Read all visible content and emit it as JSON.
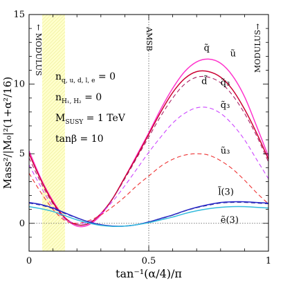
{
  "chart_data": {
    "type": "line",
    "xlabel": "tan⁻¹(α/4)/π",
    "ylabel": "Mass²/|M₀|²(1+α²/16)",
    "xlim": [
      0,
      1
    ],
    "ylim": [
      -2,
      15
    ],
    "x_ticks": [
      0,
      0.5,
      1
    ],
    "x_tick_labels": [
      "0",
      "0.5",
      "1"
    ],
    "y_ticks": [
      0,
      5,
      10,
      15
    ],
    "y_tick_labels": [
      "0",
      "5",
      "10",
      "15"
    ],
    "grid": false,
    "x": [
      0,
      0.05,
      0.1,
      0.15,
      0.2,
      0.25,
      0.3,
      0.35,
      0.4,
      0.45,
      0.5,
      0.55,
      0.6,
      0.65,
      0.7,
      0.75,
      0.8,
      0.85,
      0.9,
      0.95,
      1.0
    ],
    "series": [
      {
        "name": "q̃",
        "color": "#ff33cc",
        "dash": false,
        "values": [
          5.2,
          3.2,
          1.6,
          0.4,
          -0.2,
          -0.1,
          0.6,
          1.8,
          3.3,
          4.9,
          6.5,
          8.2,
          9.7,
          10.9,
          11.6,
          11.8,
          11.5,
          10.6,
          9.1,
          7.0,
          4.8
        ]
      },
      {
        "name": "ũ",
        "color": "#cc0033",
        "dash": false,
        "values": [
          5.0,
          3.1,
          1.5,
          0.4,
          -0.1,
          0.0,
          0.7,
          1.8,
          3.3,
          4.8,
          6.4,
          8.0,
          9.4,
          10.4,
          10.9,
          10.9,
          10.5,
          9.6,
          8.2,
          6.5,
          4.6
        ]
      },
      {
        "name": "d̃",
        "color": "#aa2266",
        "dash": true,
        "values": [
          4.7,
          2.9,
          1.4,
          0.3,
          -0.1,
          0.0,
          0.7,
          1.8,
          3.2,
          4.7,
          6.2,
          7.7,
          9.0,
          10.0,
          10.5,
          10.5,
          10.1,
          9.2,
          7.9,
          6.3,
          4.4
        ]
      },
      {
        "name": "q̃₃",
        "color": "#cc44ff",
        "dash": true,
        "values": [
          4.2,
          2.6,
          1.2,
          0.3,
          0.0,
          0.1,
          0.7,
          1.6,
          2.7,
          3.9,
          5.1,
          6.2,
          7.2,
          7.9,
          8.3,
          8.3,
          7.9,
          7.1,
          6.0,
          4.6,
          3.2
        ]
      },
      {
        "name": "ũ₃",
        "color": "#ee3333",
        "dash": true,
        "values": [
          3.6,
          2.2,
          1.0,
          0.2,
          0.0,
          0.2,
          0.6,
          1.2,
          1.9,
          2.7,
          3.4,
          4.1,
          4.6,
          4.9,
          5.0,
          4.9,
          4.5,
          3.9,
          3.1,
          2.2,
          1.4
        ]
      },
      {
        "name": "l̃",
        "color": "#2222cc",
        "dash": false,
        "values": [
          1.5,
          1.35,
          1.1,
          0.75,
          0.4,
          0.1,
          -0.1,
          -0.2,
          -0.2,
          -0.1,
          0.1,
          0.35,
          0.6,
          0.9,
          1.15,
          1.35,
          1.5,
          1.55,
          1.55,
          1.5,
          1.45
        ]
      },
      {
        "name": "l̃ (dashed)",
        "color": "#3333aa",
        "dash": true,
        "values": [
          1.45,
          1.3,
          1.05,
          0.7,
          0.38,
          0.1,
          -0.1,
          -0.2,
          -0.2,
          -0.1,
          0.1,
          0.33,
          0.58,
          0.88,
          1.12,
          1.3,
          1.45,
          1.5,
          1.5,
          1.45,
          1.4
        ]
      },
      {
        "name": "ẽ",
        "color": "#33bbdd",
        "dash": false,
        "values": [
          1.2,
          1.05,
          0.85,
          0.55,
          0.25,
          0.02,
          -0.15,
          -0.22,
          -0.2,
          -0.1,
          0.05,
          0.25,
          0.45,
          0.7,
          0.9,
          1.05,
          1.15,
          1.2,
          1.2,
          1.15,
          1.1
        ]
      }
    ],
    "shaded_region": {
      "x": [
        0.055,
        0.15
      ],
      "color": "#ffffcc"
    },
    "vlines": [
      {
        "x": 0.5,
        "label": "AMSB"
      }
    ],
    "hlines": [
      {
        "y": 0
      }
    ],
    "annotations": {
      "left_label": "← MODULUS",
      "right_label": "MODULUS→",
      "params": [
        {
          "main": "n",
          "sub": "q, u, d, l, e",
          "rest": " = 0"
        },
        {
          "main": "n",
          "sub": "H₁, H₂",
          "rest": " = 0"
        },
        {
          "main": "M",
          "sub": "SUSY",
          "rest": " = 1 TeV"
        },
        {
          "main": "tanβ",
          "sub": "",
          "rest": "= 10"
        }
      ],
      "curve_labels": [
        {
          "text": "q̃",
          "x": 0.73,
          "y": 12.4
        },
        {
          "text": "ũ",
          "x": 0.84,
          "y": 12.0
        },
        {
          "text": "d̃",
          "x": 0.72,
          "y": 10.0
        },
        {
          "text": "q̃₃",
          "x": 0.8,
          "y": 9.9
        },
        {
          "text": "q̃₃",
          "x": 0.8,
          "y": 8.3
        },
        {
          "text": "ũ₃",
          "x": 0.8,
          "y": 5.0
        },
        {
          "text": "l̃(3)",
          "x": 0.79,
          "y": 2.05
        },
        {
          "text": "ẽ(3)",
          "x": 0.8,
          "y": 0.05
        }
      ]
    }
  }
}
